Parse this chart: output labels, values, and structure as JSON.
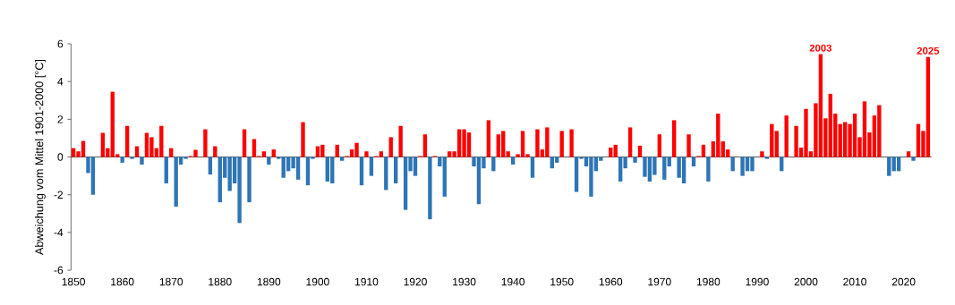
{
  "chart_data": {
    "type": "bar",
    "ylabel": "Abweichung vom Mittel 1901-2000 [°C]",
    "x": [
      1850,
      1851,
      1852,
      1853,
      1854,
      1855,
      1856,
      1857,
      1858,
      1859,
      1860,
      1861,
      1862,
      1863,
      1864,
      1865,
      1866,
      1867,
      1868,
      1869,
      1870,
      1871,
      1872,
      1873,
      1874,
      1875,
      1876,
      1877,
      1878,
      1879,
      1880,
      1881,
      1882,
      1883,
      1884,
      1885,
      1886,
      1887,
      1888,
      1889,
      1890,
      1891,
      1892,
      1893,
      1894,
      1895,
      1896,
      1897,
      1898,
      1899,
      1900,
      1901,
      1902,
      1903,
      1904,
      1905,
      1906,
      1907,
      1908,
      1909,
      1910,
      1911,
      1912,
      1913,
      1914,
      1915,
      1916,
      1917,
      1918,
      1919,
      1920,
      1921,
      1922,
      1923,
      1924,
      1925,
      1926,
      1927,
      1928,
      1929,
      1930,
      1931,
      1932,
      1933,
      1934,
      1935,
      1936,
      1937,
      1938,
      1939,
      1940,
      1941,
      1942,
      1943,
      1944,
      1945,
      1946,
      1947,
      1948,
      1949,
      1950,
      1951,
      1952,
      1953,
      1954,
      1955,
      1956,
      1957,
      1958,
      1959,
      1960,
      1961,
      1962,
      1963,
      1964,
      1965,
      1966,
      1967,
      1968,
      1969,
      1970,
      1971,
      1972,
      1973,
      1974,
      1975,
      1976,
      1977,
      1978,
      1979,
      1980,
      1981,
      1982,
      1983,
      1984,
      1985,
      1986,
      1987,
      1988,
      1989,
      1990,
      1991,
      1992,
      1993,
      1994,
      1995,
      1996,
      1997,
      1998,
      1999,
      2000,
      2001,
      2002,
      2003,
      2004,
      2005,
      2006,
      2007,
      2008,
      2009,
      2010,
      2011,
      2012,
      2013,
      2014,
      2015,
      2016,
      2017,
      2018,
      2019,
      2020,
      2021,
      2022,
      2023,
      2024,
      2025
    ],
    "values": [
      0.47,
      0.3,
      0.85,
      -0.85,
      -2.0,
      0,
      1.28,
      0.47,
      3.46,
      0.15,
      -0.3,
      1.65,
      -0.1,
      0.57,
      -0.4,
      1.28,
      1.05,
      0.47,
      1.65,
      -1.4,
      0.47,
      -2.63,
      -0.4,
      -0.1,
      0.05,
      0.38,
      0,
      1.47,
      -0.93,
      0.57,
      -2.4,
      -1.1,
      -1.8,
      -1.4,
      -3.5,
      1.47,
      -2.4,
      0.95,
      0.05,
      0.3,
      -0.4,
      0.4,
      -0.1,
      -1.1,
      -0.75,
      -0.6,
      -1.2,
      1.85,
      -1.5,
      -0.1,
      0.57,
      0.65,
      -1.3,
      -1.4,
      0.65,
      -0.2,
      0.05,
      0.4,
      0.75,
      -1.5,
      0.3,
      -1.0,
      0.05,
      0.3,
      -1.75,
      1.05,
      -1.4,
      1.65,
      -2.8,
      -0.75,
      -1.0,
      0.05,
      1.2,
      -3.3,
      0.05,
      -0.5,
      -2.1,
      0.3,
      0.3,
      1.47,
      1.47,
      1.3,
      -0.5,
      -2.5,
      -0.6,
      1.95,
      -0.75,
      1.2,
      1.38,
      0.3,
      -0.4,
      0.15,
      1.38,
      0.15,
      -1.1,
      1.47,
      0.4,
      1.57,
      -0.6,
      -0.3,
      1.38,
      0,
      1.47,
      -1.85,
      -0.1,
      -0.5,
      -2.1,
      -0.75,
      -0.2,
      0,
      0.5,
      0.65,
      -1.3,
      -0.6,
      1.57,
      -0.3,
      0.6,
      -1.05,
      -1.3,
      -0.95,
      1.2,
      -1.2,
      -0.5,
      1.95,
      -1.1,
      -1.4,
      1.2,
      -0.5,
      0.05,
      0.65,
      -1.3,
      0.83,
      2.3,
      0.83,
      0.4,
      -0.75,
      0,
      -1.0,
      -0.75,
      -0.75,
      0,
      0.3,
      -0.1,
      1.75,
      1.38,
      -0.75,
      2.2,
      0,
      1.65,
      0.5,
      2.55,
      0.3,
      2.85,
      5.45,
      2.05,
      3.35,
      2.3,
      1.75,
      1.85,
      1.75,
      2.3,
      1.05,
      2.95,
      1.3,
      2.2,
      2.75,
      0,
      -1.0,
      -0.75,
      -0.75,
      0,
      0.3,
      -0.2,
      1.75,
      1.38,
      5.3
    ],
    "colors": [
      "#ff0000",
      "#ff0000",
      "#ff0000",
      "#2e75b6",
      "#2e75b6",
      "#ff0000",
      "#ff0000",
      "#ff0000",
      "#ff0000",
      "#ff0000",
      "#2e75b6",
      "#ff0000",
      "#2e75b6",
      "#ff0000",
      "#2e75b6",
      "#ff0000",
      "#ff0000",
      "#ff0000",
      "#ff0000",
      "#2e75b6",
      "#ff0000",
      "#2e75b6",
      "#2e75b6",
      "#2e75b6",
      "#ff0000",
      "#ff0000",
      "#ff0000",
      "#ff0000",
      "#2e75b6",
      "#ff0000",
      "#2e75b6",
      "#2e75b6",
      "#2e75b6",
      "#2e75b6",
      "#2e75b6",
      "#ff0000",
      "#2e75b6",
      "#ff0000",
      "#ff0000",
      "#ff0000",
      "#2e75b6",
      "#ff0000",
      "#2e75b6",
      "#2e75b6",
      "#2e75b6",
      "#2e75b6",
      "#2e75b6",
      "#ff0000",
      "#2e75b6",
      "#2e75b6",
      "#ff0000",
      "#ff0000",
      "#2e75b6",
      "#2e75b6",
      "#ff0000",
      "#2e75b6",
      "#ff0000",
      "#ff0000",
      "#ff0000",
      "#2e75b6",
      "#ff0000",
      "#2e75b6",
      "#ff0000",
      "#ff0000",
      "#2e75b6",
      "#ff0000",
      "#2e75b6",
      "#ff0000",
      "#2e75b6",
      "#2e75b6",
      "#2e75b6",
      "#ff0000",
      "#ff0000",
      "#2e75b6",
      "#ff0000",
      "#2e75b6",
      "#2e75b6",
      "#ff0000",
      "#ff0000",
      "#ff0000",
      "#ff0000",
      "#ff0000",
      "#2e75b6",
      "#2e75b6",
      "#2e75b6",
      "#ff0000",
      "#2e75b6",
      "#ff0000",
      "#ff0000",
      "#ff0000",
      "#2e75b6",
      "#ff0000",
      "#ff0000",
      "#ff0000",
      "#2e75b6",
      "#ff0000",
      "#ff0000",
      "#ff0000",
      "#2e75b6",
      "#2e75b6",
      "#ff0000",
      "#ff0000",
      "#ff0000",
      "#2e75b6",
      "#2e75b6",
      "#2e75b6",
      "#2e75b6",
      "#2e75b6",
      "#2e75b6",
      "#ff0000",
      "#ff0000",
      "#ff0000",
      "#2e75b6",
      "#2e75b6",
      "#ff0000",
      "#2e75b6",
      "#ff0000",
      "#2e75b6",
      "#2e75b6",
      "#2e75b6",
      "#ff0000",
      "#2e75b6",
      "#2e75b6",
      "#ff0000",
      "#2e75b6",
      "#2e75b6",
      "#ff0000",
      "#2e75b6",
      "#ff0000",
      "#ff0000",
      "#2e75b6",
      "#ff0000",
      "#ff0000",
      "#ff0000",
      "#ff0000",
      "#2e75b6",
      "#ff0000",
      "#2e75b6",
      "#2e75b6",
      "#2e75b6",
      "#ff0000",
      "#ff0000",
      "#2e75b6",
      "#ff0000",
      "#ff0000",
      "#2e75b6",
      "#ff0000",
      "#ff0000",
      "#ff0000",
      "#ff0000",
      "#ff0000",
      "#ff0000",
      "#ff0000",
      "#ff0000",
      "#ff0000",
      "#ff0000",
      "#ff0000",
      "#ff0000",
      "#ff0000",
      "#ff0000",
      "#ff0000",
      "#ff0000",
      "#ff0000",
      "#ff0000",
      "#ff0000",
      "#ff0000",
      "#ff0000",
      "#2e75b6",
      "#2e75b6",
      "#2e75b6",
      "#ff0000",
      "#ff0000",
      "#2e75b6",
      "#ff0000",
      "#ff0000",
      "#ff0000"
    ],
    "xlim": [
      1849.5,
      2025.7
    ],
    "ylim": [
      -6,
      6
    ],
    "xticks": [
      1850,
      1860,
      1870,
      1880,
      1890,
      1900,
      1910,
      1920,
      1930,
      1940,
      1950,
      1960,
      1970,
      1980,
      1990,
      2000,
      2010,
      2020
    ],
    "yticks": [
      -6,
      -4,
      -2,
      0,
      2,
      4,
      6
    ],
    "annotations": [
      {
        "text": "2003",
        "x": 2003,
        "y": 5.45
      },
      {
        "text": "2025",
        "x": 2025,
        "y": 5.3
      }
    ]
  }
}
